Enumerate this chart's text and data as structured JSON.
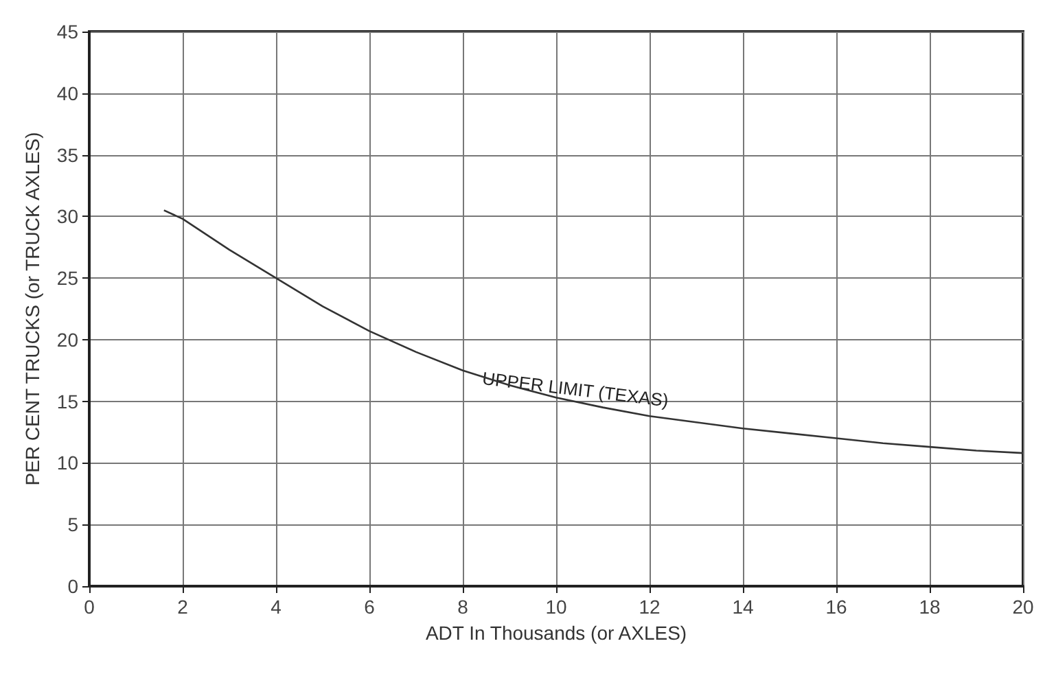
{
  "chart_data": {
    "type": "line",
    "xlabel": "ADT In Thousands (or AXLES)",
    "ylabel": "PER CENT TRUCKS (or TRUCK AXLES)",
    "x": [
      1.6,
      2,
      3,
      4,
      5,
      6,
      7,
      8,
      9,
      10,
      11,
      12,
      13,
      14,
      15,
      16,
      17,
      18,
      19,
      20
    ],
    "series": [
      {
        "color": "#333333",
        "values": [
          30.5,
          29.8,
          27.3,
          25,
          22.7,
          20.7,
          19,
          17.5,
          16.3,
          15.3,
          14.5,
          13.8,
          13.3,
          12.8,
          12.4,
          12,
          11.6,
          11.3,
          11,
          10.8
        ]
      }
    ],
    "annotations": [
      {
        "text": "UPPER LIMIT (TEXAS)",
        "x": 10,
        "y": 15.3
      }
    ],
    "xlim": [
      0,
      20
    ],
    "xticks": [
      0,
      2,
      4,
      6,
      8,
      10,
      12,
      14,
      16,
      18,
      20
    ],
    "ylim": [
      0,
      45
    ],
    "yticks": [
      0,
      5,
      10,
      15,
      20,
      25,
      30,
      35,
      40,
      45
    ],
    "grid": true,
    "marker": "none",
    "line_style": "solid"
  }
}
